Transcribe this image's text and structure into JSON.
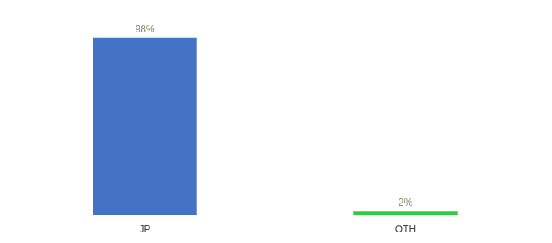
{
  "chart_data": {
    "type": "bar",
    "categories": [
      "JP",
      "OTH"
    ],
    "values": [
      98,
      2
    ],
    "value_labels": [
      "98%",
      "2%"
    ],
    "colors": [
      "#4472c4",
      "#2ecc40"
    ],
    "ylim": [
      0,
      110
    ],
    "yticks": [],
    "data_labels": true,
    "tick_labels": "x",
    "grid": false
  }
}
